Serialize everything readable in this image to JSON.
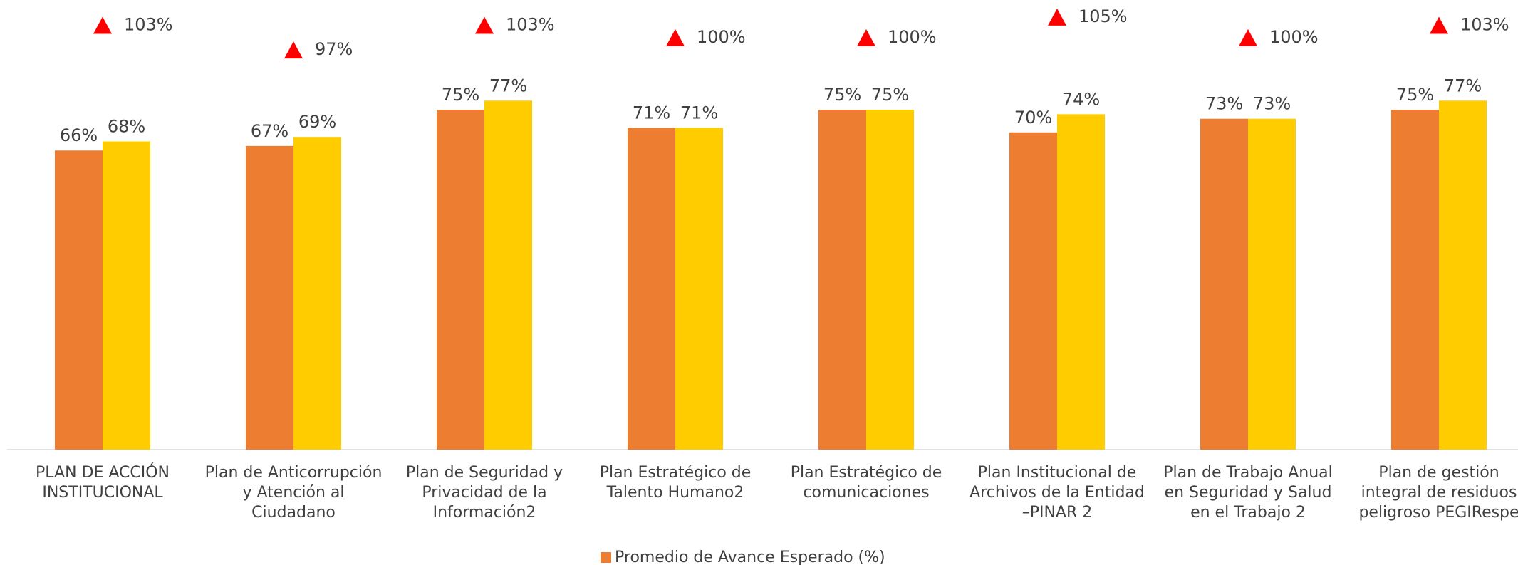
{
  "chart_data": {
    "type": "bar",
    "categories": [
      "PLAN DE ACCIÓN INSTITUCIONAL",
      "Plan de Anticorrupción y Atención al Ciudadano",
      "Plan de Seguridad y Privacidad de la Información2",
      "Plan Estratégico de Talento Humano2",
      "Plan Estratégico de comunicaciones",
      "Plan Institucional de Archivos de la Entidad –PINAR 2",
      "Plan de Trabajo Anual en Seguridad y Salud en el Trabajo 2",
      "Plan de gestión integral de residuos peligroso PEGIRespe"
    ],
    "series": [
      {
        "name": "Promedio de Avance Esperado (%)",
        "color": "#ed7d31",
        "values": [
          66,
          67,
          75,
          71,
          75,
          70,
          73,
          75
        ],
        "value_labels": [
          "66%",
          "67%",
          "75%",
          "71%",
          "75%",
          "70%",
          "73%",
          "75%"
        ]
      },
      {
        "color": "#ffcc00",
        "values": [
          68,
          69,
          77,
          71,
          75,
          74,
          73,
          77
        ],
        "value_labels": [
          "68%",
          "69%",
          "77%",
          "71%",
          "75%",
          "74%",
          "73%",
          "77%"
        ]
      },
      {
        "type": "scatter",
        "marker": "triangle",
        "axis": "y2",
        "color": "#ff0000",
        "values": [
          103,
          97,
          103,
          100,
          100,
          105,
          100,
          103
        ],
        "value_labels": [
          "103%",
          "97%",
          "103%",
          "100%",
          "100%",
          "105%",
          "100%",
          "103%"
        ]
      }
    ],
    "ylim": [
      0,
      100
    ],
    "y2lim": [
      0,
      110
    ],
    "legend": "bottom"
  }
}
